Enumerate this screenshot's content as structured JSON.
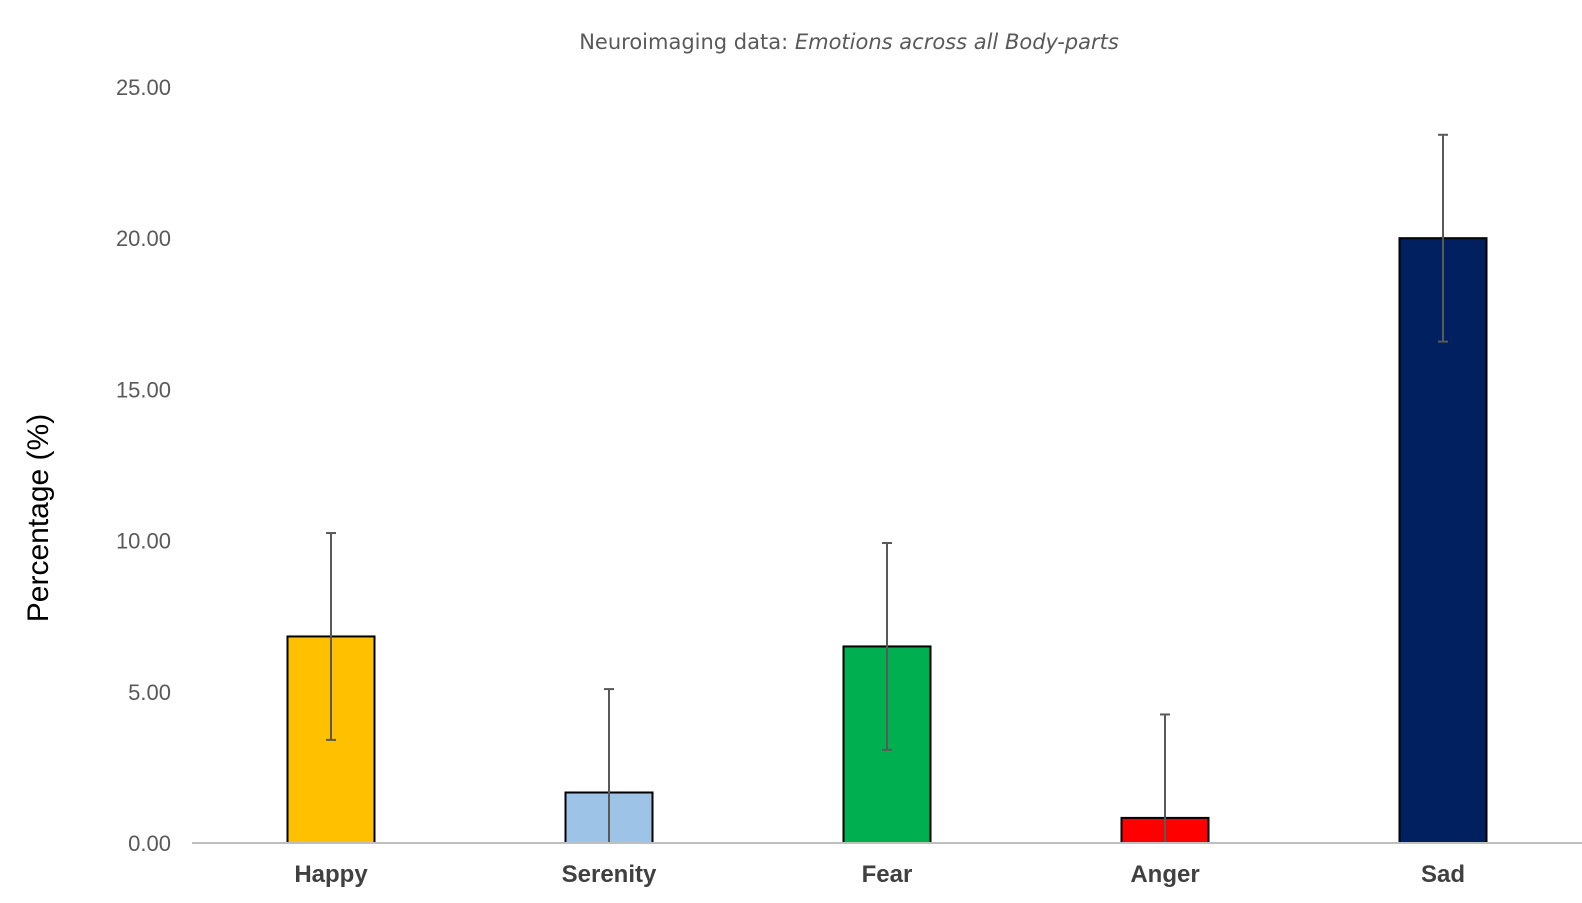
{
  "chart_data": {
    "type": "bar",
    "title": {
      "prefix": "Neuroimaging data: ",
      "emphasis": "Emotions across all Body-parts"
    },
    "xlabel": "",
    "ylabel": "Percentage (%)",
    "ylim": [
      0,
      25
    ],
    "yticks": [
      0,
      5,
      10,
      15,
      20,
      25
    ],
    "ytick_labels": [
      "0.00",
      "5.00",
      "10.00",
      "15.00",
      "20.00",
      "25.00"
    ],
    "grid": false,
    "legend": "none",
    "categories": [
      "Happy",
      "Serenity",
      "Fear",
      "Anger",
      "Sad"
    ],
    "values": [
      6.83,
      1.67,
      6.5,
      0.83,
      20.0
    ],
    "error_bars": [
      3.42,
      3.42,
      3.42,
      3.42,
      3.42
    ],
    "colors": [
      "#FFC000",
      "#9DC3E6",
      "#00B050",
      "#FF0000",
      "#002060"
    ],
    "bar_edge_color": "#000000",
    "error_bar_color": "#595959",
    "axis_color": "#BFBFBF"
  }
}
